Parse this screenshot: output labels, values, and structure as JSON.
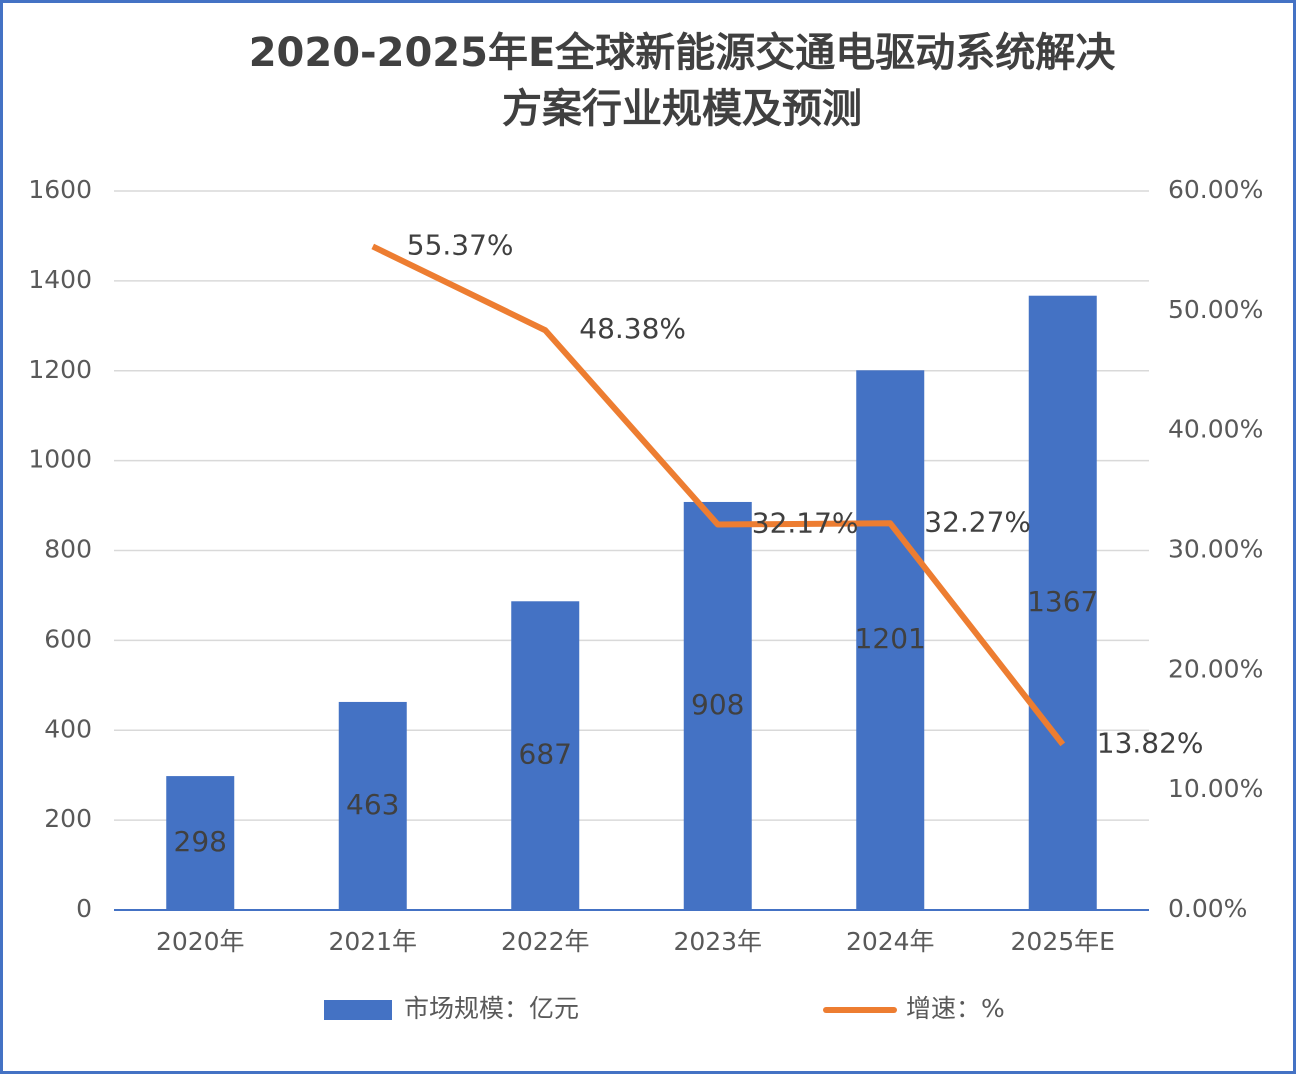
{
  "chart_data": {
    "type": "bar",
    "title": [
      "2020-2025年E全球新能源交通电驱动系统解决",
      "方案行业规模及预测"
    ],
    "categories": [
      "2020年",
      "2021年",
      "2022年",
      "2023年",
      "2024年",
      "2025年E"
    ],
    "series": [
      {
        "name": "市场规模：亿元",
        "type": "bar",
        "color": "#4472c4",
        "values": [
          298,
          463,
          687,
          908,
          1201,
          1367
        ]
      },
      {
        "name": "增速：%",
        "type": "line",
        "color": "#ed7d31",
        "axis": "y2",
        "values": [
          null,
          55.37,
          48.38,
          32.17,
          32.27,
          13.82
        ],
        "value_labels": [
          null,
          "55.37%",
          "48.38%",
          "32.17%",
          "32.27%",
          "13.82%"
        ]
      }
    ],
    "ylim": [
      0,
      1600
    ],
    "yticks": [
      0,
      200,
      400,
      600,
      800,
      1000,
      1200,
      1400,
      1600
    ],
    "y2lim": [
      0,
      60
    ],
    "y2ticks": [
      {
        "value": 0,
        "label": "0.00%"
      },
      {
        "value": 10,
        "label": "10.00%"
      },
      {
        "value": 20,
        "label": "20.00%"
      },
      {
        "value": 30,
        "label": "30.00%"
      },
      {
        "value": 40,
        "label": "40.00%"
      },
      {
        "value": 50,
        "label": "50.00%"
      },
      {
        "value": 60,
        "label": "60.00%"
      }
    ],
    "grid": true,
    "legend": "bottom"
  }
}
